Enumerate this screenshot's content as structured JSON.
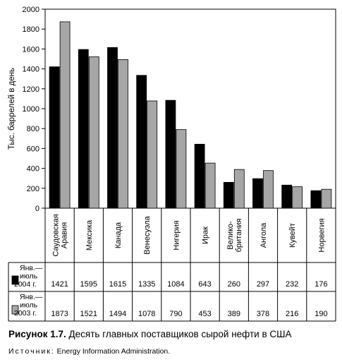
{
  "chart_data": {
    "type": "bar",
    "ylabel": "Тыс. баррелей в день",
    "ylim": [
      0,
      2000
    ],
    "yticks": [
      0,
      200,
      400,
      600,
      800,
      1000,
      1200,
      1400,
      1600,
      1800,
      2000
    ],
    "categories": [
      "Саудовская Аравия",
      "Мексика",
      "Канада",
      "Венесуэла",
      "Нигерия",
      "Ирак",
      "Велико-британия",
      "Ангола",
      "Кувейт",
      "Норвегия"
    ],
    "category_lines": [
      [
        "Саудовская",
        "Аравия"
      ],
      [
        "Мексика"
      ],
      [
        "Канада"
      ],
      [
        "Венесуэла"
      ],
      [
        "Нигерия"
      ],
      [
        "Ирак"
      ],
      [
        "Велико-",
        "британия"
      ],
      [
        "Ангола"
      ],
      [
        "Кувейт"
      ],
      [
        "Норвегия"
      ]
    ],
    "series": [
      {
        "name": "Янв.— июль 2004 г.",
        "label_lines": [
          "Янв.—",
          "июль",
          "2004 г."
        ],
        "color": "#000000",
        "values": [
          1421,
          1595,
          1615,
          1335,
          1084,
          643,
          260,
          297,
          232,
          176
        ]
      },
      {
        "name": "Янв.— июль 2003 г.",
        "label_lines": [
          "Янв.—",
          "июль",
          "2003 г."
        ],
        "color": "#a6a6a6",
        "values": [
          1873,
          1521,
          1494,
          1078,
          790,
          453,
          389,
          378,
          216,
          190
        ]
      }
    ],
    "grid": false,
    "legend": "table-below"
  },
  "caption": {
    "figure_label": "Рисунок 1.7.",
    "text": "Десять главных поставщиков сырой нефти в США"
  },
  "source": {
    "label": "Источник:",
    "text": "Energy Information Administration."
  }
}
